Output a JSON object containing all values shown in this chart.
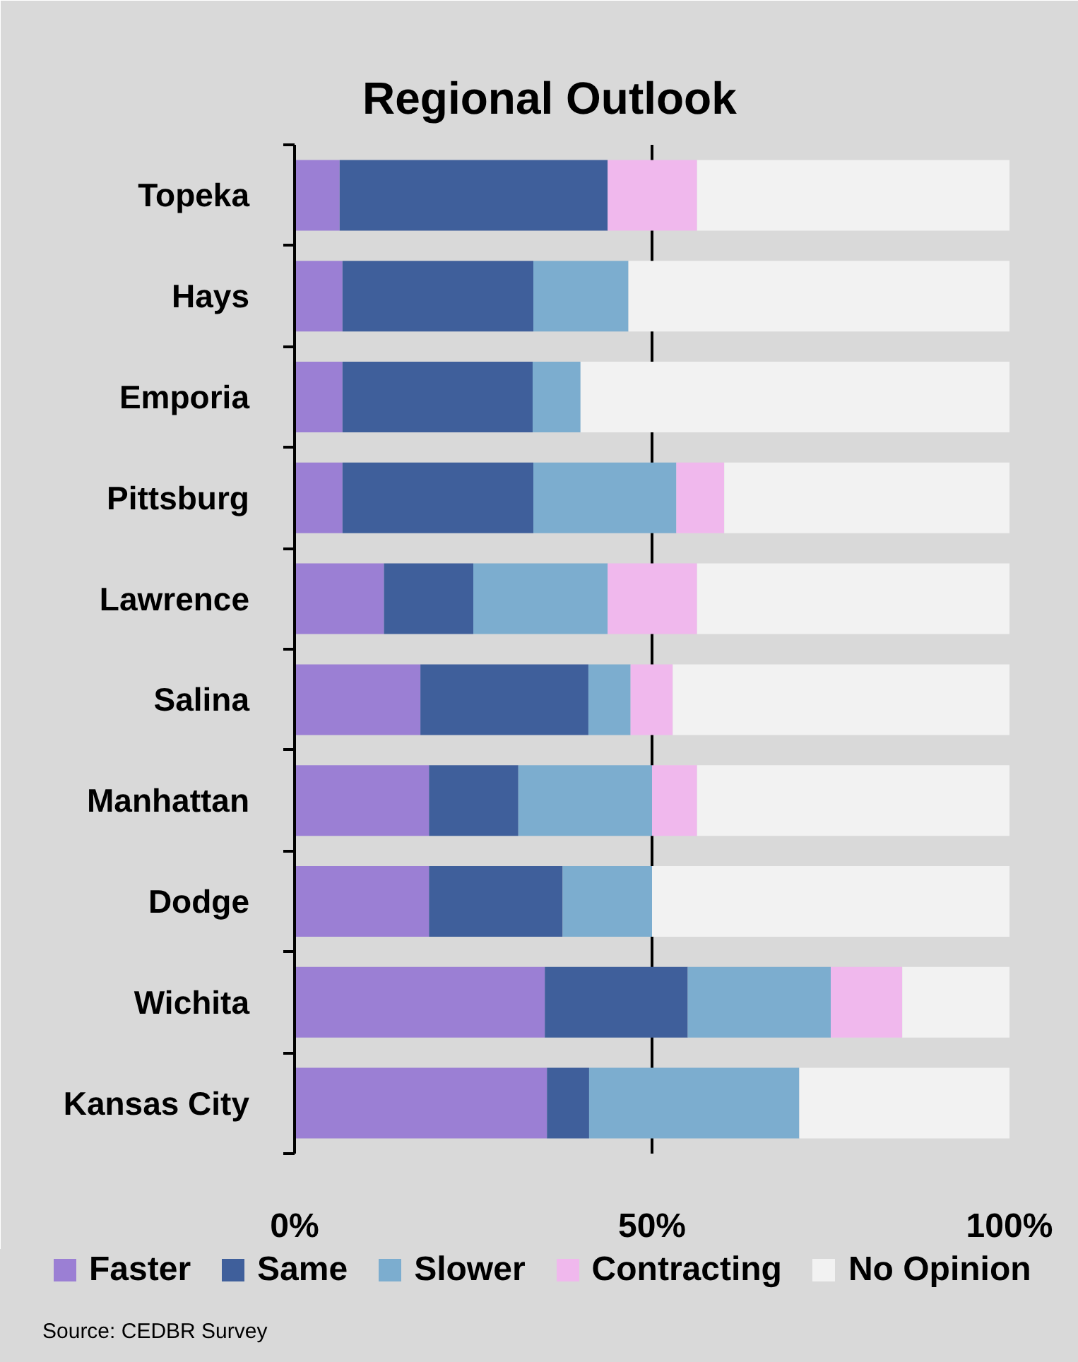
{
  "chart_data": {
    "type": "bar",
    "orientation": "horizontal",
    "stacked": true,
    "title": "Regional Outlook",
    "categories": [
      "Topeka",
      "Hays",
      "Emporia",
      "Pittsburg",
      "Lawrence",
      "Salina",
      "Manhattan",
      "Dodge",
      "Wichita",
      "Kansas City"
    ],
    "series": [
      {
        "name": "Faster",
        "color": "#9b7fd4",
        "values": [
          6.3,
          6.7,
          6.7,
          6.7,
          12.5,
          17.6,
          18.8,
          18.8,
          35,
          35.3
        ]
      },
      {
        "name": "Same",
        "color": "#3f5f9b",
        "values": [
          37.5,
          26.7,
          26.6,
          26.7,
          12.5,
          23.5,
          12.5,
          18.7,
          20,
          5.9
        ]
      },
      {
        "name": "Slower",
        "color": "#7cadcf",
        "values": [
          0,
          13.3,
          6.7,
          20.0,
          18.8,
          5.9,
          18.7,
          12.5,
          20,
          29.4
        ]
      },
      {
        "name": "Contracting",
        "color": "#f0b8ed",
        "values": [
          12.5,
          0,
          0,
          6.7,
          12.5,
          5.9,
          6.3,
          0,
          10,
          0
        ]
      },
      {
        "name": "No Opinion",
        "color": "#f2f2f2",
        "values": [
          43.7,
          53.3,
          60.0,
          39.9,
          43.7,
          47.1,
          43.7,
          50.0,
          15,
          29.4
        ]
      }
    ],
    "xlim": [
      0,
      100
    ],
    "xticks": [
      {
        "value": 0,
        "label": "0%"
      },
      {
        "value": 50,
        "label": "50%"
      },
      {
        "value": 100,
        "label": "100%"
      }
    ],
    "grid": "x",
    "legend": "bottom",
    "annotations": [
      "Source: CEDBR Survey"
    ]
  }
}
